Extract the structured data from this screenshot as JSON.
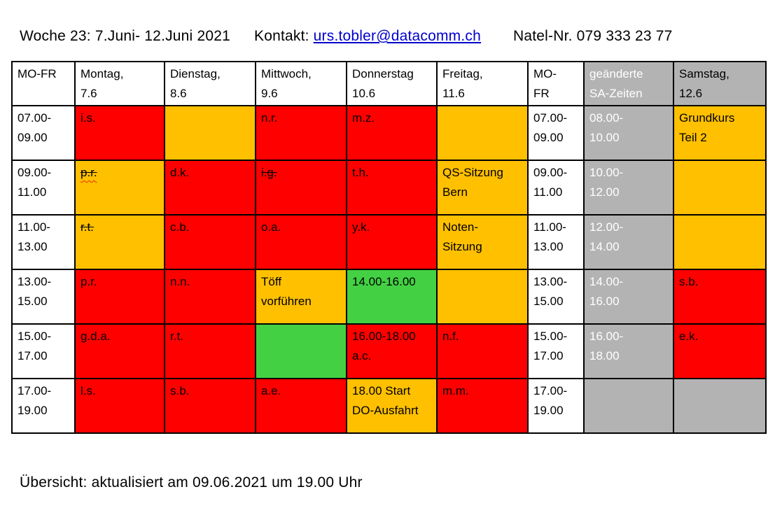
{
  "title": {
    "week": "Woche 23: 7.Juni- 12.Juni 2021",
    "kontakt_label": "Kontakt: ",
    "email": "urs.tobler@datacomm.ch",
    "natel": "Natel-Nr. 079 333 23 77"
  },
  "footer": {
    "text": "Übersicht: aktualisiert am 09.06.2021 um 19.00 Uhr"
  },
  "colors": {
    "red": "#FF0000",
    "orange": "#FFC000",
    "green": "#43D143",
    "gray": "#B3B3B3",
    "link_blue": "#0000CC",
    "border": "#000000"
  },
  "table": {
    "columns": [
      {
        "id": "time-weekdays",
        "label": "MO-FR",
        "bg": "white",
        "width": 90,
        "sa": false
      },
      {
        "id": "montag",
        "label": "Montag,\n7.6",
        "bg": "white",
        "width": 128,
        "sa": false
      },
      {
        "id": "dienstag",
        "label": "Dienstag,\n8.6",
        "bg": "white",
        "width": 130,
        "sa": false
      },
      {
        "id": "mittwoch",
        "label": "Mittwoch,\n9.6",
        "bg": "white",
        "width": 130,
        "sa": false
      },
      {
        "id": "donnerstag",
        "label": "Donnerstag\n10.6",
        "bg": "white",
        "width": 129,
        "sa": false
      },
      {
        "id": "freitag",
        "label": "Freitag,\n11.6",
        "bg": "white",
        "width": 130,
        "sa": false
      },
      {
        "id": "time-weekdays-2",
        "label": "MO-\nFR",
        "bg": "white",
        "width": 80,
        "sa": false
      },
      {
        "id": "sa-zeiten",
        "label": "geänderte\nSA-Zeiten",
        "bg": "gray",
        "width": 128,
        "sa": true
      },
      {
        "id": "samstag",
        "label": "Samstag,\n12.6",
        "bg": "gray",
        "width": 132,
        "sa": false
      }
    ],
    "rows": [
      {
        "cells": [
          {
            "text": "07.00-\n09.00",
            "bg": "white"
          },
          {
            "text": "i.s.",
            "bg": "red"
          },
          {
            "text": "",
            "bg": "orange"
          },
          {
            "text": "n.r.",
            "bg": "red"
          },
          {
            "text": "m.z.",
            "bg": "red"
          },
          {
            "text": "",
            "bg": "orange"
          },
          {
            "text": "07.00-\n09.00",
            "bg": "white"
          },
          {
            "text": "08.00-\n10.00",
            "bg": "gray",
            "sa": true
          },
          {
            "text": "Grundkurs\nTeil 2",
            "bg": "orange"
          }
        ]
      },
      {
        "cells": [
          {
            "text": "09.00-\n11.00",
            "bg": "white"
          },
          {
            "text": "p.r.",
            "bg": "orange",
            "strike": true,
            "squiggle": true
          },
          {
            "text": "d.k.",
            "bg": "red"
          },
          {
            "text": "i.g.",
            "bg": "red",
            "strike": true
          },
          {
            "text": "t.h.",
            "bg": "red"
          },
          {
            "text": "QS-Sitzung\nBern",
            "bg": "orange"
          },
          {
            "text": "09.00-\n11.00",
            "bg": "white"
          },
          {
            "text": "10.00-\n12.00",
            "bg": "gray",
            "sa": true
          },
          {
            "text": "",
            "bg": "orange"
          }
        ]
      },
      {
        "cells": [
          {
            "text": "11.00-\n13.00",
            "bg": "white"
          },
          {
            "text": "r.t.",
            "bg": "orange",
            "strike": true
          },
          {
            "text": "c.b.",
            "bg": "red"
          },
          {
            "text": "o.a.",
            "bg": "red"
          },
          {
            "text": "y.k.",
            "bg": "red"
          },
          {
            "text": "Noten-\nSitzung",
            "bg": "orange"
          },
          {
            "text": "11.00-\n13.00",
            "bg": "white"
          },
          {
            "text": "12.00-\n14.00",
            "bg": "gray",
            "sa": true
          },
          {
            "text": "",
            "bg": "orange"
          }
        ]
      },
      {
        "cells": [
          {
            "text": "13.00-\n15.00",
            "bg": "white"
          },
          {
            "text": "p.r.",
            "bg": "red"
          },
          {
            "text": "n.n.",
            "bg": "red"
          },
          {
            "text": "Töff\nvorführen",
            "bg": "orange"
          },
          {
            "text": "14.00-16.00",
            "bg": "green"
          },
          {
            "text": "",
            "bg": "orange"
          },
          {
            "text": "13.00-\n15.00",
            "bg": "white"
          },
          {
            "text": "14.00-\n16.00",
            "bg": "gray",
            "sa": true
          },
          {
            "text": "s.b.",
            "bg": "red"
          }
        ]
      },
      {
        "cells": [
          {
            "text": "15.00-\n17.00",
            "bg": "white"
          },
          {
            "text": "g.d.a.",
            "bg": "red"
          },
          {
            "text": "r.t.",
            "bg": "red"
          },
          {
            "text": "",
            "bg": "green"
          },
          {
            "text": "16.00-18.00\na.c.",
            "bg": "red"
          },
          {
            "text": "n.f.",
            "bg": "red"
          },
          {
            "text": "15.00-\n17.00",
            "bg": "white"
          },
          {
            "text": "16.00-\n18.00",
            "bg": "gray",
            "sa": true
          },
          {
            "text": "e.k.",
            "bg": "red"
          }
        ]
      },
      {
        "cells": [
          {
            "text": "17.00-\n19.00",
            "bg": "white"
          },
          {
            "text": "l.s.",
            "bg": "red"
          },
          {
            "text": "s.b.",
            "bg": "red"
          },
          {
            "text": "a.e.",
            "bg": "red"
          },
          {
            "text": "18.00 Start\nDO-Ausfahrt",
            "bg": "orange"
          },
          {
            "text": "m.m.",
            "bg": "red"
          },
          {
            "text": "17.00-\n19.00",
            "bg": "white"
          },
          {
            "text": "",
            "bg": "gray"
          },
          {
            "text": "",
            "bg": "gray"
          }
        ]
      }
    ]
  }
}
